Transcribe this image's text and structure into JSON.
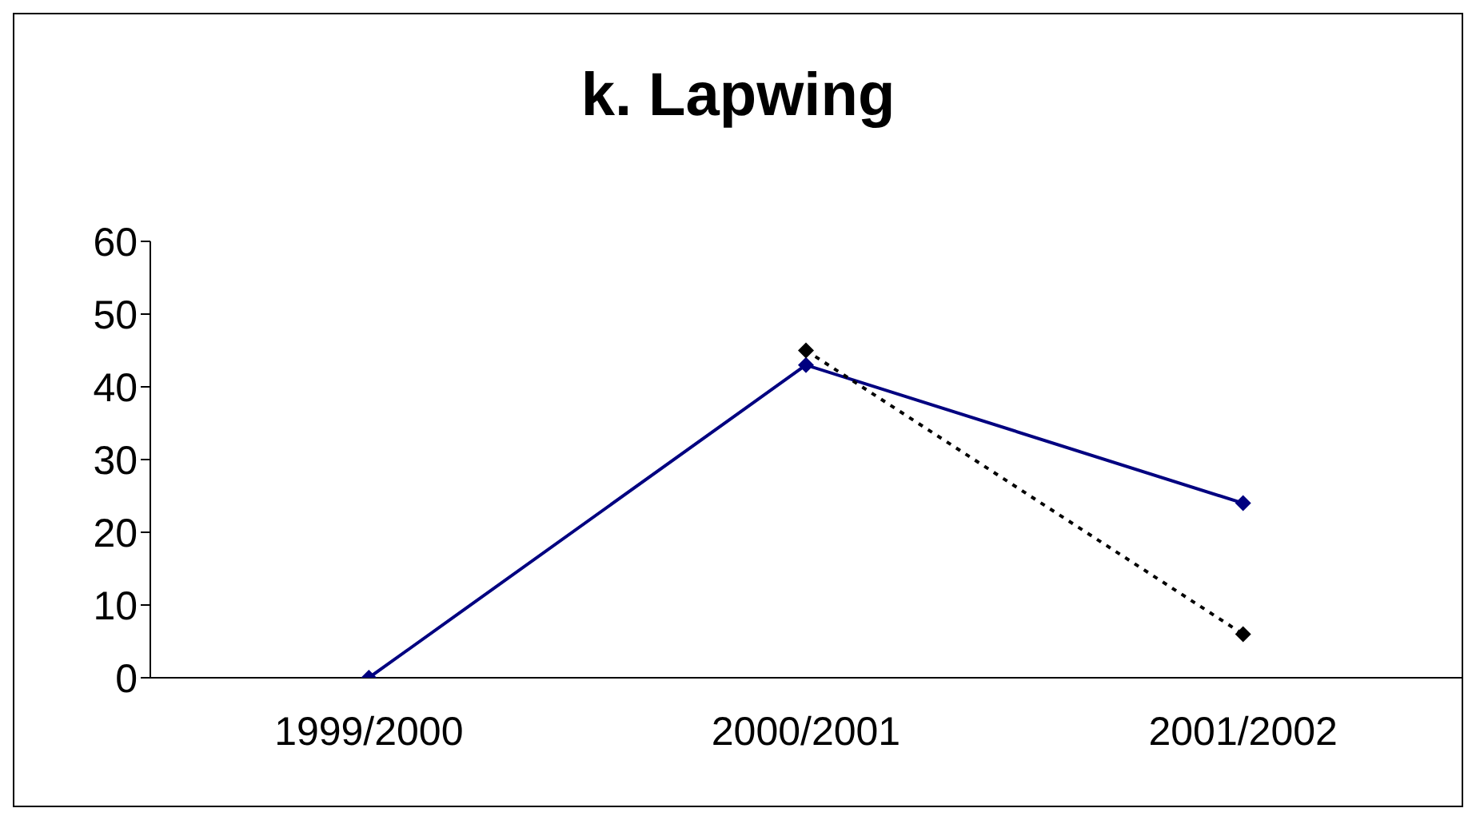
{
  "chart_data": {
    "type": "line",
    "title": "k.  Lapwing",
    "categories": [
      "1999/2000",
      "2000/2001",
      "2001/2002"
    ],
    "series": [
      {
        "color": "#000080",
        "values": [
          0,
          43,
          24
        ],
        "line_style": "solid"
      },
      {
        "color": "#000000",
        "values": [
          null,
          45,
          6
        ],
        "line_style": "dotted"
      }
    ],
    "ylim": [
      0,
      60
    ],
    "yticks": [
      0,
      10,
      20,
      30,
      40,
      50,
      60
    ],
    "grid": false,
    "legend": false,
    "marker": "diamond"
  }
}
